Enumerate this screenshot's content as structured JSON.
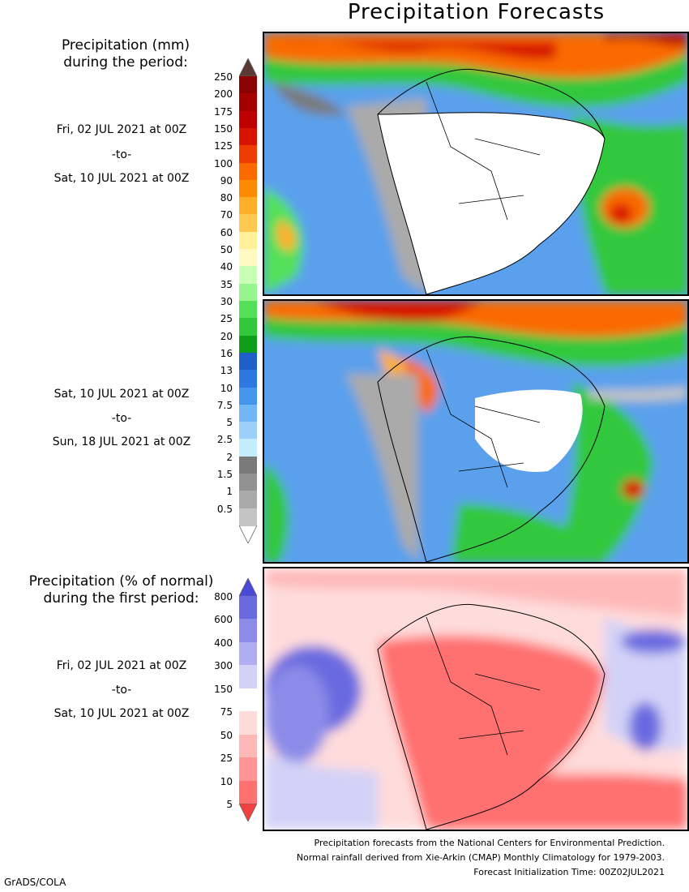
{
  "title": "Precipitation Forecasts",
  "legend_mm": {
    "title_line1": "Precipitation (mm)",
    "title_line2": "during the period:",
    "ticks": [
      "250",
      "200",
      "175",
      "150",
      "125",
      "100",
      "90",
      "80",
      "70",
      "60",
      "50",
      "40",
      "35",
      "30",
      "25",
      "20",
      "16",
      "13",
      "10",
      "7.5",
      "5",
      "2.5",
      "2",
      "1.5",
      "1",
      "0.5"
    ],
    "colors": [
      "#8b0000",
      "#a40000",
      "#bf0000",
      "#d81400",
      "#ee3c00",
      "#fa6a00",
      "#ff8c00",
      "#ffae2a",
      "#ffc84e",
      "#fff09a",
      "#fffbc0",
      "#c8ffb4",
      "#96f58c",
      "#55e05a",
      "#32c83c",
      "#0f9e1a",
      "#1f60c8",
      "#2c78e0",
      "#4496ec",
      "#72b6f6",
      "#9cd0fa",
      "#c4ecff",
      "#7a7a7a",
      "#929292",
      "#aaaaaa",
      "#c4c4c4"
    ],
    "top_arrow_color": "#5a3a32",
    "bottom_arrow_color": "#ffffff"
  },
  "period1": {
    "start": "Fri, 02 JUL 2021 at 00Z",
    "sep": "-to-",
    "end": "Sat, 10 JUL 2021 at 00Z"
  },
  "period2": {
    "start": "Sat, 10 JUL 2021 at 00Z",
    "sep": "-to-",
    "end": "Sun, 18 JUL 2021 at 00Z"
  },
  "legend_pct": {
    "title_line1": "Precipitation (% of normal)",
    "title_line2": "during the first period:",
    "ticks": [
      "800",
      "600",
      "400",
      "300",
      "150",
      "75",
      "50",
      "25",
      "10",
      "5"
    ],
    "colors": [
      "#6a6ae0",
      "#8c8ce8",
      "#aeaef0",
      "#d2d2f8",
      "#ffffff",
      "#ffdcdc",
      "#ffb8b8",
      "#ff9494",
      "#ff7070"
    ],
    "top_arrow_color": "#4a4ad8",
    "bottom_arrow_color": "#f04040"
  },
  "period3": {
    "start": "Fri, 02 JUL 2021 at 00Z",
    "sep": "-to-",
    "end": "Sat, 10 JUL 2021 at 00Z"
  },
  "footer": {
    "line1": "Precipitation forecasts from the National Centers for Environmental Prediction.",
    "line2": "Normal rainfall derived from Xie-Arkin (CMAP) Monthly Climatology for 1979-2003.",
    "line3": "Forecast Initialization Time: 00Z02JUL2021"
  },
  "credit": "GrADS/COLA"
}
